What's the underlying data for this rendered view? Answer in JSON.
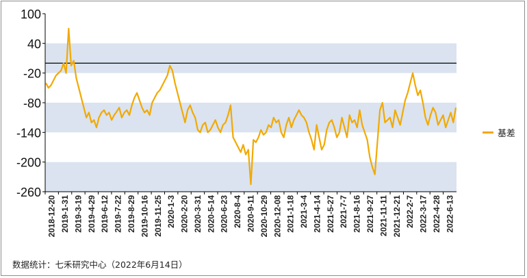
{
  "chart_data": {
    "type": "line",
    "title": "",
    "xlabel": "",
    "ylabel": "",
    "ylim": [
      -260,
      100
    ],
    "yticks": [
      100,
      40,
      -20,
      -80,
      -140,
      -200,
      -260
    ],
    "reference_line": 0,
    "colors": {
      "series": "#f2a900",
      "band": "#dae3ef",
      "axis": "#000000"
    },
    "grid": "alternating horizontal bands",
    "legend_position": "right",
    "x_tick_labels": [
      "2018-12-20",
      "2019-1-31",
      "2019-3-19",
      "2019-4-29",
      "2019-6-12",
      "2019-7-22",
      "2019-8-29",
      "2019-10-16",
      "2019-11-25",
      "2020-1-3",
      "2020-2-20",
      "2020-3-31",
      "2020-5-14",
      "2020-6-23",
      "2020-8-4",
      "2020-9-11",
      "2020-10-29",
      "2020-12-08",
      "2021-1-18",
      "2021-3-4",
      "2021-4-14",
      "2021-5-27",
      "2021-7-7",
      "2021-8-16",
      "2021-9-27",
      "2021-11-11",
      "2021-12-21",
      "2022-2-7",
      "2022-3-17",
      "2022-4-28",
      "2022-6-13"
    ],
    "series": [
      {
        "name": "基差",
        "values": [
          -40,
          -50,
          -45,
          -35,
          -25,
          -20,
          -15,
          0,
          -20,
          70,
          -5,
          5,
          -30,
          -50,
          -70,
          -90,
          -110,
          -100,
          -120,
          -115,
          -130,
          -110,
          -100,
          -95,
          -105,
          -100,
          -115,
          -105,
          -98,
          -90,
          -110,
          -100,
          -95,
          -105,
          -85,
          -70,
          -60,
          -75,
          -90,
          -100,
          -95,
          -105,
          -80,
          -70,
          -60,
          -55,
          -45,
          -35,
          -25,
          -5,
          -15,
          -40,
          -60,
          -80,
          -100,
          -120,
          -95,
          -85,
          -100,
          -110,
          -135,
          -140,
          -125,
          -120,
          -140,
          -135,
          -125,
          -115,
          -130,
          -140,
          -125,
          -120,
          -105,
          -85,
          -150,
          -160,
          -170,
          -180,
          -165,
          -185,
          -175,
          -245,
          -155,
          -160,
          -150,
          -135,
          -145,
          -140,
          -125,
          -130,
          -110,
          -120,
          -115,
          -140,
          -150,
          -125,
          -110,
          -130,
          -115,
          -105,
          -95,
          -105,
          -110,
          -120,
          -140,
          -155,
          -175,
          -125,
          -150,
          -175,
          -165,
          -135,
          -120,
          -115,
          -130,
          -150,
          -140,
          -110,
          -130,
          -150,
          -105,
          -120,
          -115,
          -130,
          -95,
          -125,
          -140,
          -155,
          -190,
          -210,
          -225,
          -160,
          -95,
          -80,
          -120,
          -115,
          -110,
          -130,
          -95,
          -110,
          -125,
          -100,
          -75,
          -60,
          -40,
          -20,
          -45,
          -65,
          -55,
          -80,
          -110,
          -125,
          -105,
          -90,
          -100,
          -125,
          -115,
          -105,
          -130,
          -115,
          -100,
          -120,
          -90
        ]
      }
    ]
  },
  "legend": {
    "label": "基差"
  },
  "source": "数据统计：七禾研究中心（2022年6月14日）"
}
